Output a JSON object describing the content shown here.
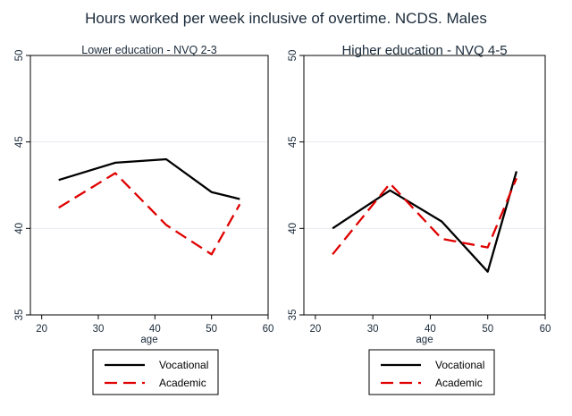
{
  "title": "Hours worked per week inclusive of overtime. NCDS. Males",
  "colors": {
    "vocational": "#000000",
    "academic": "#e00000",
    "gridline": "#e6eaf0",
    "frame": "#000000",
    "text": "#1a2a3a"
  },
  "chart_data": [
    {
      "type": "line",
      "title": "Lower education - NVQ 2-3",
      "xlabel": "age",
      "ylabel": "",
      "xlim": [
        18,
        60
      ],
      "ylim": [
        35,
        50
      ],
      "xticks": [
        20,
        30,
        40,
        50,
        60
      ],
      "yticks": [
        35,
        40,
        45,
        50
      ],
      "grid": true,
      "legend_position": "bottom",
      "series": [
        {
          "name": "Vocational",
          "style": "solid",
          "x": [
            23,
            33,
            42,
            50,
            55
          ],
          "y": [
            42.8,
            43.8,
            44.0,
            42.1,
            41.7
          ]
        },
        {
          "name": "Academic",
          "style": "dashed",
          "x": [
            23,
            33,
            42,
            50,
            55
          ],
          "y": [
            41.2,
            43.2,
            40.2,
            38.5,
            41.4
          ]
        }
      ]
    },
    {
      "type": "line",
      "title": "Higher education - NVQ 4-5",
      "xlabel": "age",
      "ylabel": "",
      "xlim": [
        18,
        60
      ],
      "ylim": [
        35,
        50
      ],
      "xticks": [
        20,
        30,
        40,
        50,
        60
      ],
      "yticks": [
        35,
        40,
        45,
        50
      ],
      "grid": true,
      "legend_position": "bottom",
      "series": [
        {
          "name": "Vocational",
          "style": "solid",
          "x": [
            23,
            33,
            42,
            50,
            55
          ],
          "y": [
            40.0,
            42.2,
            40.4,
            37.5,
            43.3
          ]
        },
        {
          "name": "Academic",
          "style": "dashed",
          "x": [
            23,
            33,
            42,
            50,
            55
          ],
          "y": [
            38.5,
            42.6,
            39.4,
            38.9,
            42.9
          ]
        }
      ]
    }
  ]
}
